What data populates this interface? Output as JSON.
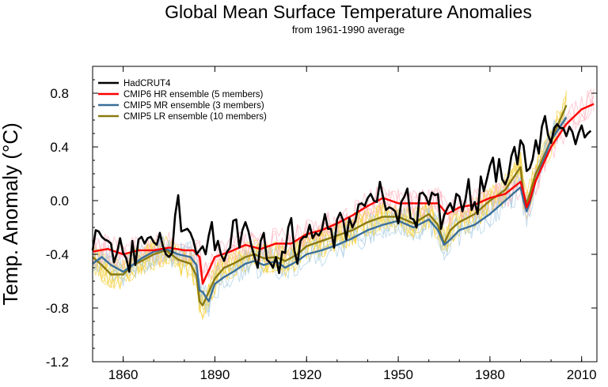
{
  "chart_data": {
    "type": "line",
    "title": "Global Mean Surface Temperature Anomalies",
    "subtitle": "from 1961-1990 average",
    "xlabel": "",
    "ylabel": "Temp. Anomaly (°C)",
    "xlim": [
      1850,
      2015
    ],
    "ylim": [
      -1.2,
      1.0
    ],
    "xticks": [
      1860,
      1890,
      1920,
      1950,
      1980,
      2010
    ],
    "yticks": [
      -1.2,
      -0.8,
      -0.4,
      0.0,
      0.4,
      0.8
    ],
    "ytick_labels": [
      "-1.2",
      "-0.8",
      "-0.4",
      "0.0",
      "0.4",
      "0.8"
    ],
    "legend_position": "top-left",
    "series": [
      {
        "name": "HadCRUT4",
        "color": "#000000",
        "x": [
          1850,
          1851,
          1852,
          1853,
          1854,
          1855,
          1856,
          1857,
          1858,
          1859,
          1860,
          1861,
          1862,
          1863,
          1864,
          1865,
          1866,
          1867,
          1868,
          1869,
          1870,
          1871,
          1872,
          1873,
          1874,
          1875,
          1876,
          1877,
          1878,
          1879,
          1880,
          1881,
          1882,
          1883,
          1884,
          1885,
          1886,
          1887,
          1888,
          1889,
          1890,
          1891,
          1892,
          1893,
          1894,
          1895,
          1896,
          1897,
          1898,
          1899,
          1900,
          1901,
          1902,
          1903,
          1904,
          1905,
          1906,
          1907,
          1908,
          1909,
          1910,
          1911,
          1912,
          1913,
          1914,
          1915,
          1916,
          1917,
          1918,
          1919,
          1920,
          1921,
          1922,
          1923,
          1924,
          1925,
          1926,
          1927,
          1928,
          1929,
          1930,
          1931,
          1932,
          1933,
          1934,
          1935,
          1936,
          1937,
          1938,
          1939,
          1940,
          1941,
          1942,
          1943,
          1944,
          1945,
          1946,
          1947,
          1948,
          1949,
          1950,
          1951,
          1952,
          1953,
          1954,
          1955,
          1956,
          1957,
          1958,
          1959,
          1960,
          1961,
          1962,
          1963,
          1964,
          1965,
          1966,
          1967,
          1968,
          1969,
          1970,
          1971,
          1972,
          1973,
          1974,
          1975,
          1976,
          1977,
          1978,
          1979,
          1980,
          1981,
          1982,
          1983,
          1984,
          1985,
          1986,
          1987,
          1988,
          1989,
          1990,
          1991,
          1992,
          1993,
          1994,
          1995,
          1996,
          1997,
          1998,
          1999,
          2000,
          2001,
          2002,
          2003,
          2004,
          2005,
          2006,
          2007,
          2008,
          2009,
          2010,
          2011,
          2012,
          2013
        ],
        "y": [
          -0.37,
          -0.22,
          -0.23,
          -0.27,
          -0.29,
          -0.3,
          -0.32,
          -0.46,
          -0.39,
          -0.28,
          -0.39,
          -0.43,
          -0.53,
          -0.3,
          -0.48,
          -0.29,
          -0.27,
          -0.32,
          -0.28,
          -0.27,
          -0.31,
          -0.33,
          -0.24,
          -0.34,
          -0.4,
          -0.42,
          -0.39,
          -0.11,
          0.04,
          -0.23,
          -0.22,
          -0.21,
          -0.24,
          -0.3,
          -0.4,
          -0.37,
          -0.34,
          -0.4,
          -0.26,
          -0.16,
          -0.37,
          -0.3,
          -0.4,
          -0.45,
          -0.38,
          -0.35,
          -0.15,
          -0.14,
          -0.35,
          -0.22,
          -0.16,
          -0.23,
          -0.34,
          -0.42,
          -0.5,
          -0.3,
          -0.24,
          -0.44,
          -0.46,
          -0.5,
          -0.42,
          -0.54,
          -0.38,
          -0.39,
          -0.2,
          -0.13,
          -0.37,
          -0.47,
          -0.3,
          -0.27,
          -0.27,
          -0.18,
          -0.28,
          -0.24,
          -0.26,
          -0.22,
          -0.1,
          -0.21,
          -0.21,
          -0.35,
          -0.14,
          -0.09,
          -0.15,
          -0.29,
          -0.13,
          -0.2,
          -0.15,
          -0.03,
          -0.02,
          -0.04,
          0.02,
          0.05,
          0.0,
          -0.01,
          0.14,
          0.03,
          -0.07,
          -0.05,
          -0.06,
          -0.08,
          -0.17,
          -0.01,
          0.03,
          0.09,
          -0.13,
          -0.14,
          -0.2,
          0.05,
          0.06,
          0.03,
          -0.03,
          0.06,
          0.04,
          0.05,
          -0.21,
          -0.11,
          -0.06,
          -0.02,
          -0.08,
          0.05,
          0.03,
          -0.08,
          0.01,
          0.16,
          -0.07,
          -0.01,
          -0.1,
          0.18,
          0.07,
          0.16,
          0.26,
          0.32,
          0.14,
          0.31,
          0.16,
          0.12,
          0.18,
          0.33,
          0.4,
          0.27,
          0.45,
          0.41,
          0.22,
          0.24,
          0.31,
          0.45,
          0.35,
          0.55,
          0.63,
          0.49,
          0.43,
          0.54,
          0.57,
          0.54,
          0.54,
          0.48,
          0.55,
          0.51,
          0.42,
          0.5,
          0.56,
          0.47,
          0.5,
          0.52
        ],
        "width": 2.6
      },
      {
        "name": "CMIP6 HR ensemble (5 members)",
        "color": "#ff0000",
        "x": [
          1850,
          1855,
          1860,
          1865,
          1870,
          1875,
          1880,
          1883,
          1885,
          1886,
          1890,
          1895,
          1900,
          1905,
          1910,
          1915,
          1920,
          1925,
          1930,
          1935,
          1940,
          1945,
          1950,
          1955,
          1960,
          1963,
          1966,
          1970,
          1975,
          1980,
          1985,
          1990,
          1991,
          1992,
          1993,
          1995,
          2000,
          2005,
          2010,
          2014
        ],
        "y": [
          -0.38,
          -0.36,
          -0.4,
          -0.37,
          -0.37,
          -0.35,
          -0.37,
          -0.37,
          -0.42,
          -0.62,
          -0.42,
          -0.38,
          -0.33,
          -0.36,
          -0.32,
          -0.32,
          -0.25,
          -0.22,
          -0.17,
          -0.11,
          -0.04,
          0.02,
          -0.02,
          -0.02,
          -0.02,
          -0.02,
          -0.1,
          -0.05,
          -0.03,
          0.02,
          0.05,
          0.14,
          0.06,
          -0.05,
          0.0,
          0.15,
          0.4,
          0.57,
          0.68,
          0.72
        ],
        "width": 2.4
      },
      {
        "name": "CMIP5 MR ensemble (3 members)",
        "color": "#3a6f9a",
        "x": [
          1850,
          1853,
          1856,
          1860,
          1863,
          1866,
          1870,
          1874,
          1878,
          1882,
          1884,
          1885,
          1886,
          1888,
          1890,
          1893,
          1896,
          1900,
          1903,
          1906,
          1910,
          1913,
          1917,
          1920,
          1925,
          1930,
          1935,
          1940,
          1945,
          1950,
          1955,
          1960,
          1963,
          1965,
          1967,
          1970,
          1975,
          1980,
          1985,
          1990,
          1991,
          1992,
          1993,
          1995,
          2000,
          2005
        ],
        "y": [
          -0.47,
          -0.42,
          -0.48,
          -0.53,
          -0.48,
          -0.43,
          -0.38,
          -0.36,
          -0.4,
          -0.42,
          -0.48,
          -0.67,
          -0.68,
          -0.75,
          -0.62,
          -0.57,
          -0.53,
          -0.47,
          -0.45,
          -0.48,
          -0.45,
          -0.5,
          -0.45,
          -0.4,
          -0.37,
          -0.33,
          -0.28,
          -0.22,
          -0.18,
          -0.15,
          -0.2,
          -0.14,
          -0.22,
          -0.33,
          -0.29,
          -0.22,
          -0.18,
          -0.1,
          0.0,
          0.1,
          0.0,
          -0.08,
          -0.02,
          0.15,
          0.45,
          0.62
        ],
        "width": 2.4
      },
      {
        "name": "CMIP5 LR ensemble (10 members)",
        "color": "#8a7a10",
        "x": [
          1850,
          1853,
          1856,
          1860,
          1863,
          1866,
          1870,
          1874,
          1878,
          1882,
          1884,
          1885,
          1886,
          1888,
          1890,
          1893,
          1896,
          1900,
          1903,
          1906,
          1910,
          1913,
          1917,
          1920,
          1925,
          1930,
          1935,
          1940,
          1945,
          1950,
          1955,
          1960,
          1963,
          1965,
          1967,
          1970,
          1975,
          1980,
          1985,
          1990,
          1991,
          1992,
          1993,
          1995,
          2000,
          2005
        ],
        "y": [
          -0.42,
          -0.48,
          -0.55,
          -0.55,
          -0.48,
          -0.45,
          -0.4,
          -0.37,
          -0.44,
          -0.47,
          -0.56,
          -0.75,
          -0.78,
          -0.68,
          -0.58,
          -0.5,
          -0.47,
          -0.42,
          -0.4,
          -0.43,
          -0.42,
          -0.45,
          -0.4,
          -0.34,
          -0.3,
          -0.26,
          -0.22,
          -0.16,
          -0.12,
          -0.12,
          -0.17,
          -0.1,
          -0.18,
          -0.32,
          -0.22,
          -0.16,
          -0.1,
          0.0,
          0.08,
          0.25,
          0.05,
          -0.02,
          0.05,
          0.2,
          0.45,
          0.71
        ],
        "width": 2.4
      }
    ],
    "ensemble_spread_colors": [
      "#f4d03f",
      "#ffb6c1",
      "#a9cce3"
    ]
  }
}
